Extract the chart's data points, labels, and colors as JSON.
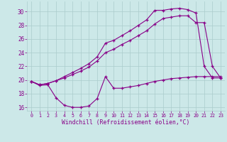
{
  "bg_color": "#cce8e8",
  "grid_color": "#aacccc",
  "line_color": "#880088",
  "xlabel": "Windchill (Refroidissement éolien,°C)",
  "ylim": [
    15.5,
    31.5
  ],
  "yticks": [
    16,
    18,
    20,
    22,
    24,
    26,
    28,
    30
  ],
  "xticks": [
    0,
    1,
    2,
    3,
    4,
    5,
    6,
    7,
    8,
    9,
    10,
    11,
    12,
    13,
    14,
    15,
    16,
    17,
    18,
    19,
    20,
    21,
    22,
    23
  ],
  "series1_x": [
    0,
    1,
    2,
    3,
    4,
    5,
    6,
    7,
    8,
    9,
    10,
    11,
    12,
    13,
    14,
    15,
    16,
    17,
    18,
    19,
    20,
    21,
    22,
    23
  ],
  "series1_y": [
    19.8,
    19.3,
    19.5,
    19.9,
    20.5,
    21.1,
    21.7,
    22.4,
    23.4,
    25.4,
    25.8,
    26.5,
    27.2,
    28.0,
    28.8,
    30.2,
    30.2,
    30.4,
    30.5,
    30.3,
    29.8,
    22.0,
    20.3,
    20.3
  ],
  "series2_x": [
    0,
    1,
    2,
    3,
    4,
    5,
    6,
    7,
    8,
    9,
    10,
    11,
    12,
    13,
    14,
    15,
    16,
    17,
    18,
    19,
    20,
    21,
    22,
    23
  ],
  "series2_y": [
    19.8,
    19.3,
    19.5,
    19.9,
    20.3,
    20.8,
    21.3,
    21.9,
    22.8,
    24.0,
    24.5,
    25.2,
    25.8,
    26.5,
    27.2,
    28.2,
    29.0,
    29.2,
    29.4,
    29.4,
    28.4,
    28.4,
    22.0,
    20.3
  ],
  "series3_x": [
    0,
    1,
    2,
    3,
    4,
    5,
    6,
    7,
    8,
    9,
    10,
    11,
    12,
    13,
    14,
    15,
    16,
    17,
    18,
    19,
    20,
    21,
    22,
    23
  ],
  "series3_y": [
    19.8,
    19.2,
    19.3,
    17.4,
    16.3,
    16.0,
    16.0,
    16.2,
    17.3,
    20.5,
    18.8,
    18.8,
    19.0,
    19.2,
    19.5,
    19.8,
    20.0,
    20.2,
    20.3,
    20.4,
    20.5,
    20.5,
    20.5,
    20.5
  ]
}
